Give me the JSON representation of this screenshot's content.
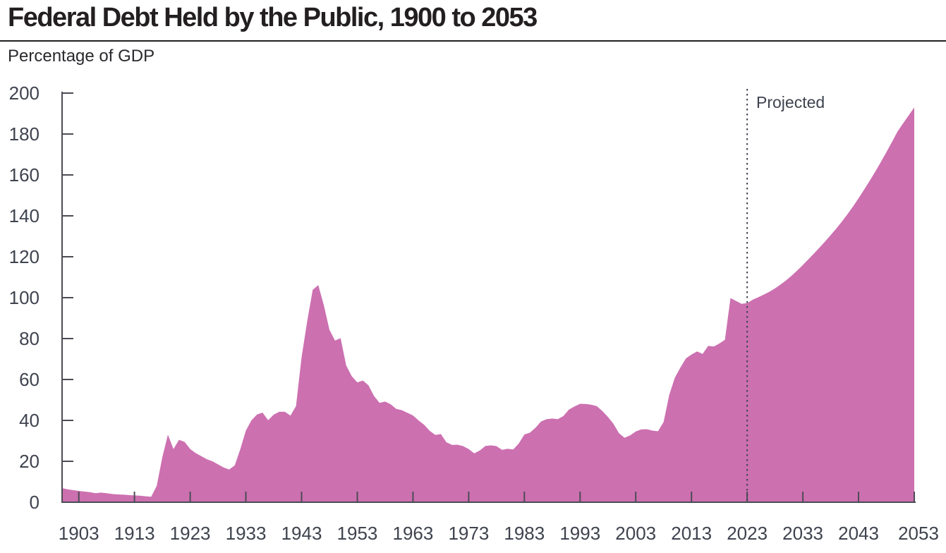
{
  "header": {
    "title": "Federal Debt Held by the Public, 1900 to 2053",
    "subtitle": "Percentage of GDP"
  },
  "chart_data": {
    "type": "area",
    "title": "Federal Debt Held by the Public, 1900 to 2053",
    "ylabel": "Percentage of GDP",
    "xlabel": "",
    "series_name": "Federal debt held by the public (% of GDP)",
    "projected_label": "Projected",
    "projection_start_year": 2023,
    "grid": false,
    "legend_position": "none",
    "xlim": [
      1900,
      2053
    ],
    "ylim": [
      0,
      200
    ],
    "y_ticks": [
      0,
      20,
      40,
      60,
      80,
      100,
      120,
      140,
      160,
      180,
      200
    ],
    "x_ticks": [
      1903,
      1913,
      1923,
      1933,
      1943,
      1953,
      1963,
      1973,
      1983,
      1993,
      2003,
      2013,
      2023,
      2033,
      2043,
      2053
    ],
    "start_year": 1900,
    "values": [
      6.9,
      6.3,
      5.9,
      5.5,
      5.2,
      4.9,
      4.4,
      4.7,
      4.4,
      4.0,
      3.8,
      3.7,
      3.5,
      3.3,
      3.2,
      2.9,
      2.7,
      8.0,
      22.0,
      33.0,
      26.0,
      30.5,
      29.5,
      26.0,
      24.0,
      22.5,
      21.0,
      20.0,
      18.5,
      17.0,
      16.0,
      18.0,
      26.0,
      35.0,
      40.0,
      42.9,
      43.8,
      40.1,
      42.8,
      44.2,
      44.2,
      42.3,
      47.0,
      70.9,
      88.3,
      103.9,
      106.1,
      96.2,
      84.3,
      79.0,
      80.2,
      66.9,
      61.6,
      58.6,
      59.5,
      57.2,
      52.0,
      48.6,
      49.2,
      47.9,
      45.6,
      45.0,
      43.7,
      42.4,
      40.0,
      37.9,
      34.9,
      32.9,
      33.3,
      29.3,
      28.0,
      28.1,
      27.4,
      26.0,
      23.9,
      25.3,
      27.5,
      27.8,
      27.4,
      25.6,
      26.1,
      25.8,
      28.7,
      33.1,
      34.0,
      36.4,
      39.5,
      40.6,
      40.9,
      40.6,
      42.1,
      45.3,
      46.8,
      48.1,
      48.0,
      47.7,
      47.0,
      44.6,
      41.7,
      38.3,
      33.7,
      31.5,
      32.7,
      34.6,
      35.6,
      35.7,
      35.0,
      34.7,
      39.2,
      52.3,
      60.8,
      65.8,
      70.3,
      72.2,
      73.7,
      72.5,
      76.4,
      76.1,
      77.6,
      79.4,
      99.8,
      98.4,
      97.0,
      97.3,
      99.0,
      100.2,
      101.5,
      102.9,
      104.5,
      106.4,
      108.5,
      110.8,
      113.3,
      116.0,
      118.8,
      121.6,
      124.5,
      127.5,
      130.6,
      133.8,
      137.2,
      140.8,
      144.6,
      148.6,
      152.8,
      157.1,
      161.6,
      166.3,
      171.1,
      176.1,
      181.2,
      185.2,
      189.1,
      193.0
    ],
    "colors": {
      "area": "#cc70b0",
      "axis": "#4c4c55",
      "text": "#3e434e",
      "title": "#231f20",
      "divider": "#3f4450"
    }
  }
}
